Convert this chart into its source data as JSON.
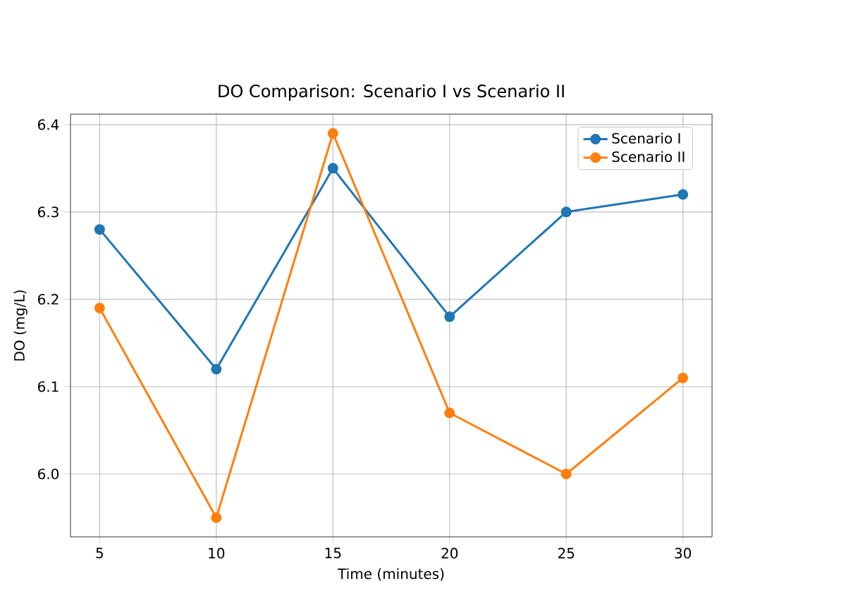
{
  "chart_data": {
    "type": "line",
    "title": "DO Comparison: Scenario I vs Scenario II",
    "xlabel": "Time (minutes)",
    "ylabel": "DO (mg/L)",
    "x": [
      5,
      10,
      15,
      20,
      25,
      30
    ],
    "series": [
      {
        "name": "Scenario I",
        "color": "#1f77b4",
        "values": [
          6.28,
          6.12,
          6.35,
          6.18,
          6.3,
          6.32
        ]
      },
      {
        "name": "Scenario II",
        "color": "#ff7f0e",
        "values": [
          6.19,
          5.95,
          6.39,
          6.07,
          6.0,
          6.11
        ]
      }
    ],
    "xlim": [
      3.75,
      31.25
    ],
    "ylim": [
      5.928,
      6.412
    ],
    "xticks": [
      5,
      10,
      15,
      20,
      25,
      30
    ],
    "yticks": [
      {
        "value": 6.0,
        "label": "6.0"
      },
      {
        "value": 6.1,
        "label": "6.1"
      },
      {
        "value": 6.2,
        "label": "6.2"
      },
      {
        "value": 6.3,
        "label": "6.3"
      },
      {
        "value": 6.4,
        "label": "6.4"
      }
    ],
    "grid": true,
    "legend": "top right",
    "marker": "circle",
    "line_style": "solid"
  }
}
